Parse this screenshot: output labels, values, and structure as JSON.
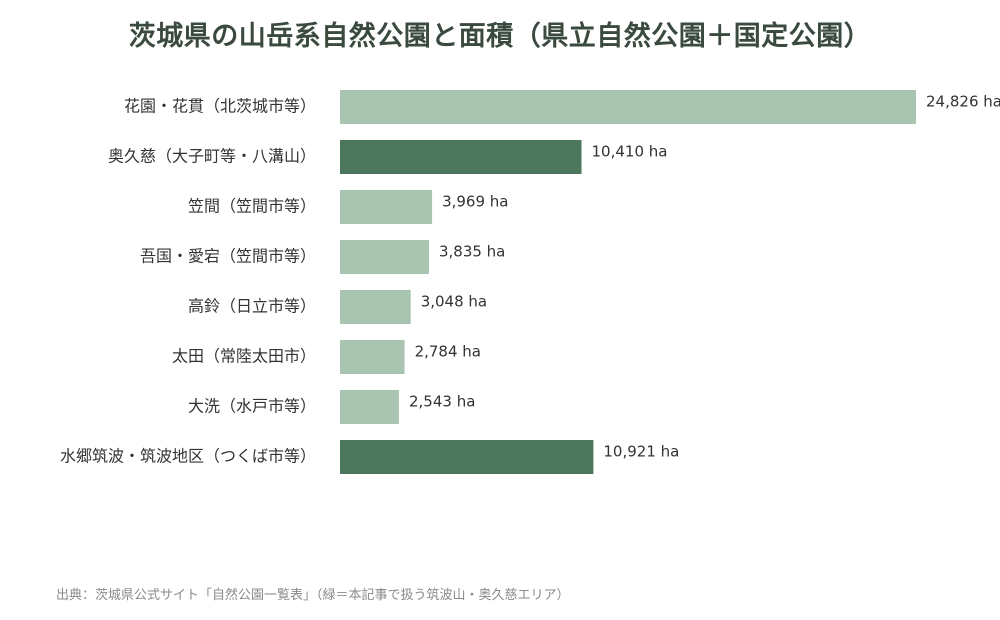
{
  "chart_data": {
    "type": "bar",
    "orientation": "horizontal",
    "title": "茨城県の山岳系自然公園と面積（県立自然公園＋国定公園）",
    "categories": [
      "花園・花貫（北茨城市等）",
      "奥久慈（大子町等・八溝山）",
      "笠間（笠間市等）",
      "吾国・愛宕（笠間市等）",
      "高鈴（日立市等）",
      "太田（常陸太田市）",
      "大洗（水戸市等）",
      "水郷筑波・筑波地区（つくば市等）"
    ],
    "values": [
      24826,
      10410,
      3969,
      3835,
      3048,
      2784,
      2543,
      10921
    ],
    "value_labels": [
      "24,826 ha",
      "10,410 ha",
      "3,969 ha",
      "3,835 ha",
      "3,048 ha",
      "2,784 ha",
      "2,543 ha",
      "10,921 ha"
    ],
    "highlighted": [
      false,
      true,
      false,
      false,
      false,
      false,
      false,
      true
    ],
    "unit": "ha",
    "xlim": [
      0,
      24826
    ],
    "grid": false,
    "legend": "none",
    "colors": {
      "default": "#a9c5b2",
      "highlight": "#4c775c"
    }
  },
  "source_note": "出典：茨城県公式サイト「自然公園一覧表」（緑＝本記事で扱う筑波山・奥久慈エリア）"
}
